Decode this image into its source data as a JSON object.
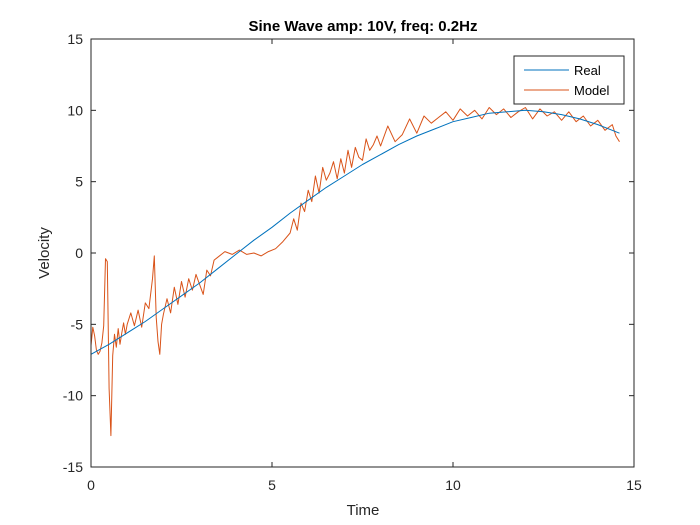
{
  "chart_data": {
    "type": "line",
    "title": "Sine Wave amp: 10V, freq: 0.2Hz",
    "xlabel": "Time",
    "ylabel": "Velocity",
    "xlim": [
      0,
      15
    ],
    "ylim": [
      -15,
      15
    ],
    "xticks": [
      "0",
      "5",
      "10",
      "15"
    ],
    "yticks": [
      "-15",
      "-10",
      "-5",
      "0",
      "5",
      "10",
      "15"
    ],
    "grid": false,
    "legend_position": "top-right",
    "series": [
      {
        "name": "Real",
        "color": "#0072BD",
        "x": [
          0,
          0.5,
          1,
          1.5,
          2,
          2.5,
          3,
          3.5,
          4,
          4.5,
          5,
          5.5,
          6,
          6.5,
          7,
          7.5,
          8,
          8.5,
          9,
          9.5,
          10,
          10.5,
          11,
          11.5,
          12,
          12.5,
          13,
          13.5,
          14,
          14.6
        ],
        "y": [
          -7.1,
          -6.4,
          -5.6,
          -4.8,
          -3.9,
          -3.0,
          -2.1,
          -1.1,
          -0.1,
          0.9,
          1.8,
          2.8,
          3.7,
          4.6,
          5.4,
          6.2,
          6.9,
          7.6,
          8.2,
          8.7,
          9.2,
          9.5,
          9.8,
          9.9,
          10.0,
          9.9,
          9.7,
          9.4,
          9.0,
          8.4
        ]
      },
      {
        "name": "Model",
        "color": "#D95319",
        "x": [
          0,
          0.05,
          0.1,
          0.15,
          0.2,
          0.25,
          0.3,
          0.35,
          0.4,
          0.45,
          0.5,
          0.55,
          0.6,
          0.65,
          0.7,
          0.75,
          0.8,
          0.85,
          0.9,
          0.95,
          1.0,
          1.1,
          1.2,
          1.3,
          1.4,
          1.5,
          1.6,
          1.7,
          1.75,
          1.8,
          1.85,
          1.9,
          1.95,
          2.0,
          2.1,
          2.2,
          2.3,
          2.4,
          2.5,
          2.6,
          2.7,
          2.8,
          2.9,
          3.0,
          3.1,
          3.2,
          3.3,
          3.4,
          3.5,
          3.7,
          3.9,
          4.1,
          4.3,
          4.5,
          4.7,
          4.9,
          5.1,
          5.3,
          5.5,
          5.6,
          5.7,
          5.8,
          5.9,
          6.0,
          6.1,
          6.2,
          6.3,
          6.4,
          6.5,
          6.6,
          6.7,
          6.8,
          6.9,
          7.0,
          7.1,
          7.2,
          7.3,
          7.4,
          7.5,
          7.6,
          7.7,
          7.8,
          7.9,
          8.0,
          8.2,
          8.4,
          8.6,
          8.8,
          9.0,
          9.2,
          9.4,
          9.6,
          9.8,
          10.0,
          10.2,
          10.4,
          10.6,
          10.8,
          11.0,
          11.2,
          11.4,
          11.6,
          11.8,
          12.0,
          12.2,
          12.4,
          12.6,
          12.8,
          13.0,
          13.2,
          13.4,
          13.6,
          13.8,
          14.0,
          14.2,
          14.4,
          14.5,
          14.6
        ],
        "y": [
          -6.5,
          -5.2,
          -5.8,
          -6.8,
          -7.1,
          -6.9,
          -6.3,
          -5.1,
          -0.4,
          -0.6,
          -9.5,
          -12.8,
          -7.2,
          -5.7,
          -6.6,
          -5.3,
          -6.4,
          -5.6,
          -4.9,
          -5.7,
          -5.0,
          -4.2,
          -5.1,
          -4.0,
          -5.2,
          -3.5,
          -3.9,
          -1.8,
          -0.2,
          -4.5,
          -6.2,
          -7.1,
          -5.0,
          -4.3,
          -3.2,
          -4.2,
          -2.4,
          -3.6,
          -2.0,
          -3.1,
          -1.8,
          -2.6,
          -1.5,
          -2.2,
          -2.9,
          -1.2,
          -1.6,
          -0.5,
          -0.3,
          0.1,
          -0.1,
          0.2,
          -0.1,
          0.0,
          -0.2,
          0.1,
          0.3,
          0.8,
          1.4,
          2.4,
          1.6,
          3.5,
          2.9,
          4.4,
          3.6,
          5.4,
          4.2,
          6.0,
          5.1,
          5.6,
          6.4,
          5.2,
          6.6,
          5.6,
          7.2,
          6.0,
          7.4,
          6.7,
          6.5,
          8.0,
          7.2,
          7.6,
          8.2,
          7.5,
          8.9,
          7.8,
          8.3,
          9.4,
          8.4,
          9.6,
          9.1,
          9.5,
          9.9,
          9.3,
          10.1,
          9.6,
          10.0,
          9.4,
          10.2,
          9.7,
          10.1,
          9.5,
          9.9,
          10.2,
          9.4,
          10.1,
          9.6,
          9.9,
          9.3,
          9.9,
          9.2,
          9.6,
          8.9,
          9.3,
          8.6,
          9.0,
          8.2,
          7.8
        ]
      }
    ]
  }
}
